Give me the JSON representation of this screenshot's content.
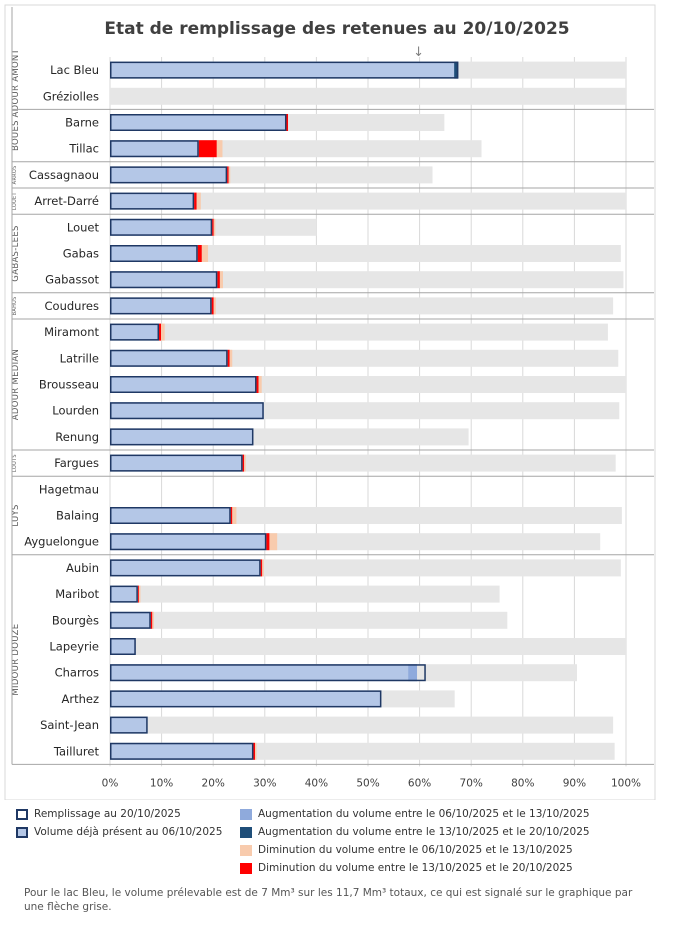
{
  "chart_data": {
    "type": "bar",
    "title": "Etat de remplissage des retenues au 20/10/2025",
    "xlim": [
      0,
      100
    ],
    "xticks": [
      "0%",
      "10%",
      "20%",
      "30%",
      "40%",
      "50%",
      "60%",
      "70%",
      "80%",
      "90%",
      "100%"
    ],
    "grid": true,
    "arrow_glyph": "↓",
    "arrow_percent": 59.8,
    "groups": [
      {
        "name": "ADOUR AMONT",
        "rows": [
          "Lac Bleu",
          "Gréziolles"
        ]
      },
      {
        "name": "BOUES",
        "rows": [
          "Barne",
          "Tillac"
        ]
      },
      {
        "name": "ARROS",
        "rows": [
          "Cassagnaou"
        ]
      },
      {
        "name": "LOUET",
        "rows": [
          "Arret-Darré"
        ]
      },
      {
        "name": "GABAS-LEES",
        "rows": [
          "Louet",
          "Gabas",
          "Gabassot"
        ]
      },
      {
        "name": "BAHUS",
        "rows": [
          "Coudures"
        ]
      },
      {
        "name": "ADOUR MEDIAN",
        "rows": [
          "Miramont",
          "Latrille",
          "Brousseau",
          "Lourden",
          "Renung"
        ]
      },
      {
        "name": "LOUTS",
        "rows": [
          "Fargues"
        ]
      },
      {
        "name": "LUYS",
        "rows": [
          "Hagetmau",
          "Balaing",
          "Ayguelongue"
        ]
      },
      {
        "name": "MIDOUR DOUZE",
        "rows": [
          "Aubin",
          "Maribot",
          "Bourgès",
          "Lapeyrie",
          "Charros",
          "Arthez",
          "Saint-Jean",
          "Tailluret"
        ]
      }
    ],
    "series_names": [
      "Remplissage au 20/10/2025",
      "Volume déjà présent au 06/10/2025",
      "Augmentation du volume entre le 06/10/2025 et le 13/10/2025",
      "Augmentation du volume entre le 13/10/2025 et le 20/10/2025",
      "Diminution du volume entre le 06/10/2025 et le 13/10/2025",
      "Diminution du volume entre le 13/10/2025 et le 20/10/2025"
    ],
    "reservoirs": [
      {
        "name": "Lac Bleu",
        "capacity": 100,
        "fill_20": 67.5,
        "base_06": 67.5,
        "inc_06_13": 0,
        "inc_13_20": 0.8,
        "dec_06_13": 0,
        "dec_13_20": 0
      },
      {
        "name": "Gréziolles",
        "capacity": 100,
        "fill_20": 0,
        "base_06": 0,
        "inc_06_13": 0,
        "inc_13_20": 0,
        "dec_06_13": 0,
        "dec_13_20": 0
      },
      {
        "name": "Barne",
        "capacity": 64.8,
        "fill_20": 34.2,
        "base_06": 34.2,
        "inc_06_13": 0,
        "inc_13_20": 0,
        "dec_06_13": 0,
        "dec_13_20": 0.3
      },
      {
        "name": "Tillac",
        "capacity": 72,
        "fill_20": 17.2,
        "base_06": 17.2,
        "inc_06_13": 0,
        "inc_13_20": 0,
        "dec_06_13": 1.1,
        "dec_13_20": 3.5
      },
      {
        "name": "Cassagnaou",
        "capacity": 62.5,
        "fill_20": 22.7,
        "base_06": 22.7,
        "inc_06_13": 0,
        "inc_13_20": 0,
        "dec_06_13": 0.3,
        "dec_13_20": 0.3
      },
      {
        "name": "Arret-Darré",
        "capacity": 100,
        "fill_20": 16.3,
        "base_06": 16.3,
        "inc_06_13": 0,
        "inc_13_20": 0,
        "dec_06_13": 0.8,
        "dec_13_20": 0.5
      },
      {
        "name": "Louet",
        "capacity": 40,
        "fill_20": 19.8,
        "base_06": 19.8,
        "inc_06_13": 0,
        "inc_13_20": 0,
        "dec_06_13": 0.3,
        "dec_13_20": 0.3
      },
      {
        "name": "Gabas",
        "capacity": 99,
        "fill_20": 17,
        "base_06": 17,
        "inc_06_13": 0,
        "inc_13_20": 0,
        "dec_06_13": 1.2,
        "dec_13_20": 0.8
      },
      {
        "name": "Gabassot",
        "capacity": 99.5,
        "fill_20": 20.8,
        "base_06": 20.8,
        "inc_06_13": 0,
        "inc_13_20": 0,
        "dec_06_13": 0.6,
        "dec_13_20": 0.5
      },
      {
        "name": "Coudures",
        "capacity": 97.5,
        "fill_20": 19.7,
        "base_06": 19.7,
        "inc_06_13": 0,
        "inc_13_20": 0,
        "dec_06_13": 0.4,
        "dec_13_20": 0.4
      },
      {
        "name": "Miramont",
        "capacity": 96.5,
        "fill_20": 9.5,
        "base_06": 9.5,
        "inc_06_13": 0,
        "inc_13_20": 0,
        "dec_06_13": 0.7,
        "dec_13_20": 0.4
      },
      {
        "name": "Latrille",
        "capacity": 98.5,
        "fill_20": 22.8,
        "base_06": 22.8,
        "inc_06_13": 0,
        "inc_13_20": 0,
        "dec_06_13": 0.5,
        "dec_13_20": 0.4
      },
      {
        "name": "Brousseau",
        "capacity": 100,
        "fill_20": 28.4,
        "base_06": 28.4,
        "inc_06_13": 0,
        "inc_13_20": 0,
        "dec_06_13": 0.6,
        "dec_13_20": 0.4
      },
      {
        "name": "Lourden",
        "capacity": 98.7,
        "fill_20": 29.8,
        "base_06": 29.8,
        "inc_06_13": 0,
        "inc_13_20": 0,
        "dec_06_13": 0,
        "dec_13_20": 0
      },
      {
        "name": "Renung",
        "capacity": 69.5,
        "fill_20": 27.8,
        "base_06": 27.8,
        "inc_06_13": 0,
        "inc_13_20": 0,
        "dec_06_13": 0,
        "dec_13_20": 0
      },
      {
        "name": "Fargues",
        "capacity": 98,
        "fill_20": 25.7,
        "base_06": 25.7,
        "inc_06_13": 0,
        "inc_13_20": 0,
        "dec_06_13": 0.3,
        "dec_13_20": 0.3
      },
      {
        "name": "Hagetmau",
        "capacity": 0,
        "fill_20": 0,
        "base_06": 0,
        "inc_06_13": 0,
        "inc_13_20": 0,
        "dec_06_13": 0,
        "dec_13_20": 0
      },
      {
        "name": "Balaing",
        "capacity": 99.2,
        "fill_20": 23.4,
        "base_06": 23.4,
        "inc_06_13": 0,
        "inc_13_20": 0,
        "dec_06_13": 0.8,
        "dec_13_20": 0.3
      },
      {
        "name": "Ayguelongue",
        "capacity": 95,
        "fill_20": 30.3,
        "base_06": 30.3,
        "inc_06_13": 0,
        "inc_13_20": 0,
        "dec_06_13": 1.5,
        "dec_13_20": 0.6
      },
      {
        "name": "Aubin",
        "capacity": 99,
        "fill_20": 29.2,
        "base_06": 29.2,
        "inc_06_13": 0,
        "inc_13_20": 0,
        "dec_06_13": 0.3,
        "dec_13_20": 0.3
      },
      {
        "name": "Maribot",
        "capacity": 75.5,
        "fill_20": 5.4,
        "base_06": 5.4,
        "inc_06_13": 0,
        "inc_13_20": 0,
        "dec_06_13": 0.3,
        "dec_13_20": 0.2
      },
      {
        "name": "Bourgès",
        "capacity": 77,
        "fill_20": 7.9,
        "base_06": 7.9,
        "inc_06_13": 0,
        "inc_13_20": 0,
        "dec_06_13": 0.3,
        "dec_13_20": 0.3
      },
      {
        "name": "Lapeyrie",
        "capacity": 100,
        "fill_20": 5,
        "base_06": 5,
        "inc_06_13": 0,
        "inc_13_20": 0,
        "dec_06_13": 0,
        "dec_13_20": 0
      },
      {
        "name": "Charros",
        "capacity": 90.5,
        "fill_20": 61.2,
        "base_06": 59.5,
        "inc_06_13": 1.7,
        "inc_13_20": 0,
        "dec_06_13": 0,
        "dec_13_20": 0
      },
      {
        "name": "Arthez",
        "capacity": 66.8,
        "fill_20": 52.6,
        "base_06": 52.6,
        "inc_06_13": 0,
        "inc_13_20": 0,
        "dec_06_13": 0,
        "dec_13_20": 0
      },
      {
        "name": "Saint-Jean",
        "capacity": 97.5,
        "fill_20": 7.3,
        "base_06": 7.3,
        "inc_06_13": 0,
        "inc_13_20": 0,
        "dec_06_13": 0,
        "dec_13_20": 0
      },
      {
        "name": "Tailluret",
        "capacity": 97.8,
        "fill_20": 27.8,
        "base_06": 27.8,
        "inc_06_13": 0,
        "inc_13_20": 0,
        "dec_06_13": 0.3,
        "dec_13_20": 0.3
      }
    ]
  },
  "colors": {
    "capacity": "#e6e6e6",
    "base": "#b4c7e7",
    "inc_06_13": "#8faadc",
    "inc_13_20": "#1f4e79",
    "dec_06_13": "#f8cbad",
    "dec_13_20": "#ff0000",
    "outline": "#1f3864",
    "grid": "#d9d9d9",
    "separator": "#a6a6a6"
  },
  "legend": {
    "fill_20": "Remplissage au 20/10/2025",
    "base_06": "Volume déjà présent au 06/10/2025",
    "inc_06_13": "Augmentation du volume entre le 06/10/2025 et le 13/10/2025",
    "inc_13_20": "Augmentation du volume entre le 13/10/2025 et le 20/10/2025",
    "dec_06_13": "Diminution du volume entre le 06/10/2025 et le 13/10/2025",
    "dec_13_20": "Diminution du volume entre le 13/10/2025 et le 20/10/2025"
  },
  "note": "Pour le lac Bleu, le volume prélevable est de 7 Mm³ sur les 11,7 Mm³ totaux, ce qui est signalé sur le graphique par une flèche grise."
}
